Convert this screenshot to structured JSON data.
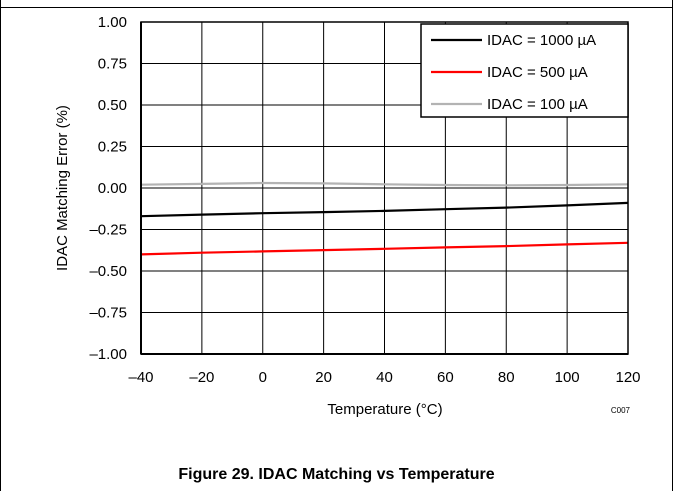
{
  "figure_caption": "Figure 29. IDAC Matching vs Temperature",
  "chart_code": "C007",
  "colors": {
    "series_1000": "#000000",
    "series_500": "#ff0000",
    "series_100": "#b3b3b3",
    "grid": "#000000"
  },
  "chart_data": {
    "type": "line",
    "title": "",
    "xlabel": "Temperature (°C)",
    "ylabel": "IDAC Matching Error (%)",
    "xlim": [
      -40,
      120
    ],
    "ylim": [
      -1.0,
      1.0
    ],
    "xticks": [
      -40,
      -20,
      0,
      20,
      40,
      60,
      80,
      100,
      120
    ],
    "xtick_labels": [
      "–40",
      "–20",
      "0",
      "20",
      "40",
      "60",
      "80",
      "100",
      "120"
    ],
    "yticks": [
      1.0,
      0.75,
      0.5,
      0.25,
      0.0,
      -0.25,
      -0.5,
      -0.75,
      -1.0
    ],
    "ytick_labels": [
      "1.00",
      "0.75",
      "0.50",
      "0.25",
      "0.00",
      "–0.25",
      "–0.50",
      "–0.75",
      "–1.00"
    ],
    "grid": true,
    "legend_position": "top-right",
    "series": [
      {
        "name": "IDAC = 1000 µA",
        "color": "#000000",
        "x": [
          -40,
          -20,
          0,
          20,
          40,
          60,
          80,
          100,
          120
        ],
        "y": [
          -0.17,
          -0.16,
          -0.152,
          -0.145,
          -0.138,
          -0.128,
          -0.118,
          -0.105,
          -0.09
        ]
      },
      {
        "name": "IDAC = 500 µA",
        "color": "#ff0000",
        "x": [
          -40,
          -20,
          0,
          20,
          40,
          60,
          80,
          100,
          120
        ],
        "y": [
          -0.4,
          -0.39,
          -0.382,
          -0.374,
          -0.366,
          -0.358,
          -0.35,
          -0.34,
          -0.33
        ]
      },
      {
        "name": "IDAC = 100 µA",
        "color": "#b3b3b3",
        "x": [
          -40,
          -20,
          0,
          20,
          40,
          60,
          80,
          100,
          120
        ],
        "y": [
          0.02,
          0.025,
          0.03,
          0.028,
          0.022,
          0.018,
          0.016,
          0.018,
          0.022
        ]
      }
    ]
  }
}
